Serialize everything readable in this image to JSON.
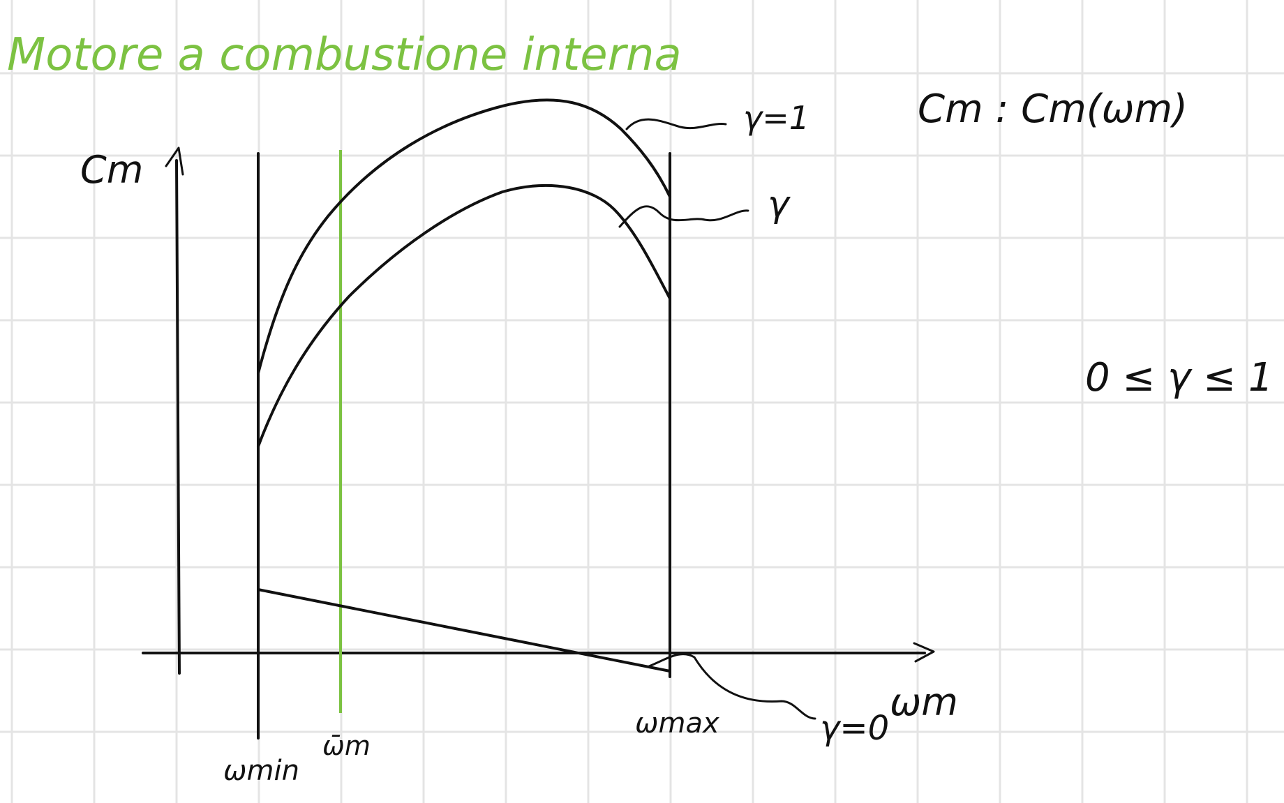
{
  "title": "Motore a combustione interna",
  "relation": "Cm : Cm(ωm)",
  "constraint": "0 ≤ γ ≤ 1",
  "axes": {
    "y_label": "Cm",
    "x_label": "ωm"
  },
  "ticks": {
    "w_min": "ωmin",
    "w_bar": "ω̄m",
    "w_max": "ωmax"
  },
  "curve_labels": {
    "full_throttle": "γ=1",
    "partial_throttle": "γ",
    "zero_throttle": "γ=0"
  },
  "colors": {
    "ink": "#111111",
    "highlight": "#7cc242",
    "grid": "#e4e4e4"
  }
}
